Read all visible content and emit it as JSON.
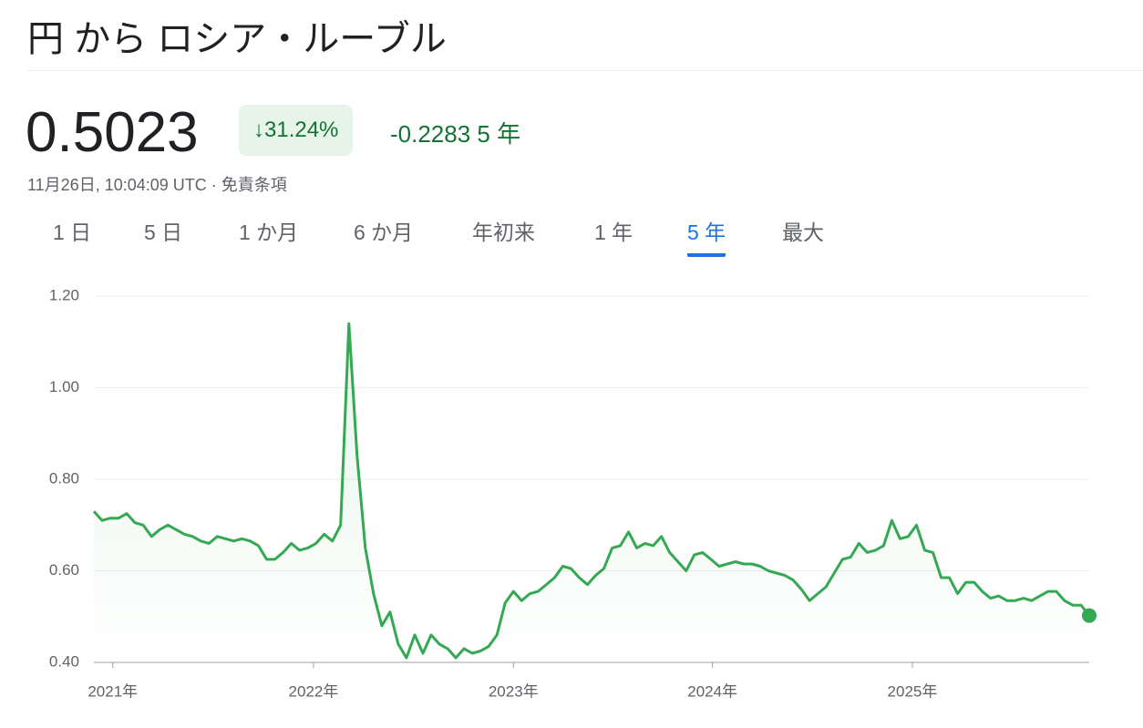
{
  "header": {
    "title": "円 から ロシア・ルーブル"
  },
  "quote": {
    "price": "0.5023",
    "change_percent": "31.24%",
    "change": "-0.2283",
    "period": "5 年",
    "timestamp": "11月26日, 10:04:09 UTC",
    "disclaimer": "免責条項"
  },
  "tabs": [
    "1 日",
    "5 日",
    "1 か月",
    "6 か月",
    "年初来",
    "1 年",
    "5 年",
    "最大"
  ],
  "selected_tab": 6,
  "chart_data": {
    "type": "line",
    "color": "#34a853",
    "grid": true,
    "values": [
      0.73,
      0.71,
      0.715,
      0.715,
      0.725,
      0.705,
      0.7,
      0.675,
      0.69,
      0.7,
      0.69,
      0.68,
      0.675,
      0.665,
      0.66,
      0.675,
      0.67,
      0.665,
      0.67,
      0.665,
      0.655,
      0.625,
      0.625,
      0.64,
      0.66,
      0.645,
      0.65,
      0.66,
      0.68,
      0.665,
      0.7,
      1.14,
      0.85,
      0.65,
      0.55,
      0.48,
      0.51,
      0.44,
      0.41,
      0.46,
      0.42,
      0.46,
      0.44,
      0.43,
      0.41,
      0.43,
      0.42,
      0.425,
      0.435,
      0.46,
      0.53,
      0.555,
      0.535,
      0.55,
      0.555,
      0.57,
      0.585,
      0.61,
      0.605,
      0.585,
      0.57,
      0.59,
      0.605,
      0.65,
      0.655,
      0.685,
      0.65,
      0.66,
      0.655,
      0.675,
      0.64,
      0.62,
      0.6,
      0.635,
      0.64,
      0.625,
      0.61,
      0.615,
      0.62,
      0.615,
      0.615,
      0.61,
      0.6,
      0.595,
      0.59,
      0.58,
      0.56,
      0.535,
      0.55,
      0.565,
      0.595,
      0.625,
      0.63,
      0.66,
      0.64,
      0.645,
      0.655,
      0.71,
      0.67,
      0.675,
      0.7,
      0.645,
      0.64,
      0.585,
      0.585,
      0.55,
      0.575,
      0.575,
      0.555,
      0.54,
      0.545,
      0.535,
      0.535,
      0.54,
      0.535,
      0.545,
      0.555,
      0.555,
      0.535,
      0.525,
      0.525,
      0.5023
    ],
    "xlim": [
      0,
      121
    ],
    "xticks": [
      {
        "value": 2.3,
        "label": "2021年"
      },
      {
        "value": 26.7,
        "label": "2022年"
      },
      {
        "value": 51.0,
        "label": "2023年"
      },
      {
        "value": 75.2,
        "label": "2024年"
      },
      {
        "value": 99.5,
        "label": "2025年"
      }
    ],
    "ylim": [
      0.4,
      1.2
    ],
    "yticks": [
      {
        "value": 0.4,
        "label": "0.40"
      },
      {
        "value": 0.6,
        "label": "0.60"
      },
      {
        "value": 0.8,
        "label": "0.80"
      },
      {
        "value": 1.0,
        "label": "1.00"
      },
      {
        "value": 1.2,
        "label": "1.20"
      }
    ]
  }
}
